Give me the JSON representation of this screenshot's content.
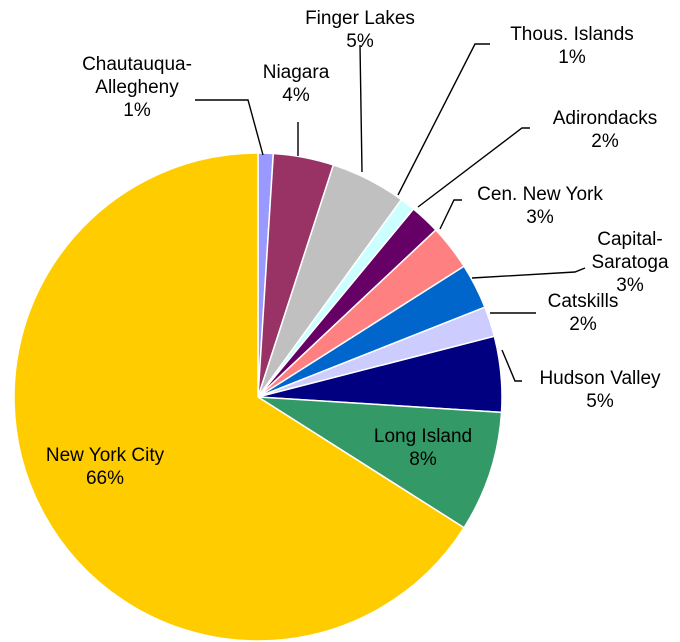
{
  "chart_data": {
    "type": "pie",
    "slices": [
      {
        "label": "Chautauqua-Allegheny",
        "label_lines": [
          "Chautauqua-",
          "Allegheny"
        ],
        "value": 1,
        "value_label": "1%",
        "color": "#9999ff"
      },
      {
        "label": "Niagara",
        "label_lines": [
          "Niagara"
        ],
        "value": 4,
        "value_label": "4%",
        "color": "#993366"
      },
      {
        "label": "Finger Lakes",
        "label_lines": [
          "Finger Lakes"
        ],
        "value": 5,
        "value_label": "5%",
        "color": "#c0c0c0"
      },
      {
        "label": "Thous. Islands",
        "label_lines": [
          "Thous. Islands"
        ],
        "value": 1,
        "value_label": "1%",
        "color": "#ccffff"
      },
      {
        "label": "Adirondacks",
        "label_lines": [
          "Adirondacks"
        ],
        "value": 2,
        "value_label": "2%",
        "color": "#660066"
      },
      {
        "label": "Cen. New York",
        "label_lines": [
          "Cen. New York"
        ],
        "value": 3,
        "value_label": "3%",
        "color": "#ff8080"
      },
      {
        "label": "Capital-Saratoga",
        "label_lines": [
          "Capital-",
          "Saratoga"
        ],
        "value": 3,
        "value_label": "3%",
        "color": "#0066cc"
      },
      {
        "label": "Catskills",
        "label_lines": [
          "Catskills"
        ],
        "value": 2,
        "value_label": "2%",
        "color": "#ccccff"
      },
      {
        "label": "Hudson Valley",
        "label_lines": [
          "Hudson Valley"
        ],
        "value": 5,
        "value_label": "5%",
        "color": "#000080"
      },
      {
        "label": "Long Island",
        "label_lines": [
          "Long Island"
        ],
        "value": 8,
        "value_label": "8%",
        "color": "#339966"
      },
      {
        "label": "New York City",
        "label_lines": [
          "New York City"
        ],
        "value": 66,
        "value_label": "66%",
        "color": "#ffcc00"
      }
    ],
    "title": "",
    "legend": "none",
    "start": "12 o'clock, clockwise"
  }
}
